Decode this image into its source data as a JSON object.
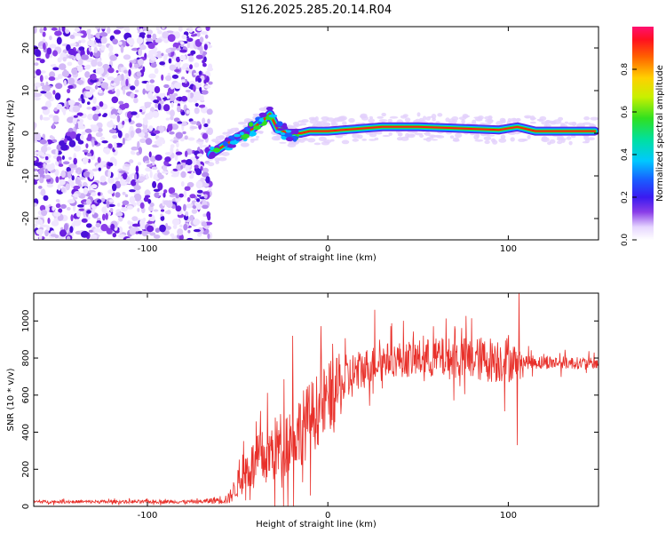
{
  "title": "S126.2025.285.20.14.R04",
  "colors": {
    "scatter_noise": "#8a3ee8",
    "scatter_noise_light": "#d9c4f5",
    "snr_line": "#e8302a",
    "axis": "#000000"
  },
  "chart_data": [
    {
      "type": "heatmap",
      "name": "spectrogram",
      "xlabel": "Height of straight line (km)",
      "ylabel": "Frequency (Hz)",
      "xlim": [
        -163,
        150
      ],
      "ylim": [
        -25,
        25
      ],
      "x_ticks": [
        -100,
        0,
        100
      ],
      "x_tick_labels": [
        "-100",
        "0",
        "100"
      ],
      "y_ticks": [
        -20,
        -10,
        0,
        10,
        20
      ],
      "y_tick_labels": [
        "-20",
        "-10",
        "0",
        "10",
        "20"
      ],
      "noise_region_x": [
        -163,
        -65
      ],
      "track_points": [
        {
          "x": -65,
          "y": -5
        },
        {
          "x": -58,
          "y": -3
        },
        {
          "x": -50,
          "y": -1
        },
        {
          "x": -42,
          "y": 1
        },
        {
          "x": -36,
          "y": 3
        },
        {
          "x": -32,
          "y": 4.5
        },
        {
          "x": -28,
          "y": 1
        },
        {
          "x": -22,
          "y": 0
        },
        {
          "x": -15,
          "y": 0
        },
        {
          "x": -10,
          "y": 0.5
        },
        {
          "x": 0,
          "y": 0.5
        },
        {
          "x": 15,
          "y": 1
        },
        {
          "x": 30,
          "y": 1.5
        },
        {
          "x": 50,
          "y": 1.5
        },
        {
          "x": 70,
          "y": 1.2
        },
        {
          "x": 95,
          "y": 0.8
        },
        {
          "x": 105,
          "y": 1.5
        },
        {
          "x": 115,
          "y": 0.5
        },
        {
          "x": 130,
          "y": 0.5
        },
        {
          "x": 148,
          "y": 0.5
        }
      ],
      "colorbar": {
        "label": "Normalized spectral amplitude",
        "range": [
          0,
          1
        ],
        "ticks": [
          0.0,
          0.2,
          0.4,
          0.6,
          0.8
        ],
        "tick_labels": [
          "0.0",
          "0.2",
          "0.4",
          "0.6",
          "0.8"
        ]
      }
    },
    {
      "type": "line",
      "name": "snr",
      "xlabel": "Height of straight line (km)",
      "ylabel": "SNR (10 * v/v)",
      "xlim": [
        -163,
        150
      ],
      "ylim": [
        0,
        1150
      ],
      "x_ticks": [
        -100,
        0,
        100
      ],
      "x_tick_labels": [
        "-100",
        "0",
        "100"
      ],
      "y_ticks": [
        0,
        200,
        400,
        600,
        800,
        1000
      ],
      "y_tick_labels": [
        "0",
        "200",
        "400",
        "600",
        "800",
        "1000"
      ],
      "envelope": [
        {
          "x": -163,
          "mean": 25,
          "spread": 8
        },
        {
          "x": -70,
          "mean": 25,
          "spread": 10
        },
        {
          "x": -55,
          "mean": 40,
          "spread": 30
        },
        {
          "x": -45,
          "mean": 200,
          "spread": 120
        },
        {
          "x": -30,
          "mean": 300,
          "spread": 180
        },
        {
          "x": -15,
          "mean": 420,
          "spread": 200
        },
        {
          "x": 0,
          "mean": 580,
          "spread": 200
        },
        {
          "x": 15,
          "mean": 720,
          "spread": 120
        },
        {
          "x": 30,
          "mean": 790,
          "spread": 90
        },
        {
          "x": 60,
          "mean": 800,
          "spread": 110
        },
        {
          "x": 100,
          "mean": 790,
          "spread": 130
        },
        {
          "x": 108,
          "mean": 780,
          "spread": 40
        },
        {
          "x": 150,
          "mean": 770,
          "spread": 30
        }
      ],
      "peaks": [
        {
          "x": -19.5,
          "y": 920
        },
        {
          "x": 26,
          "y": 1060
        },
        {
          "x": 106,
          "y": 1160
        },
        {
          "x": 105,
          "y": 330
        },
        {
          "x": -14,
          "y": 130
        }
      ]
    }
  ]
}
